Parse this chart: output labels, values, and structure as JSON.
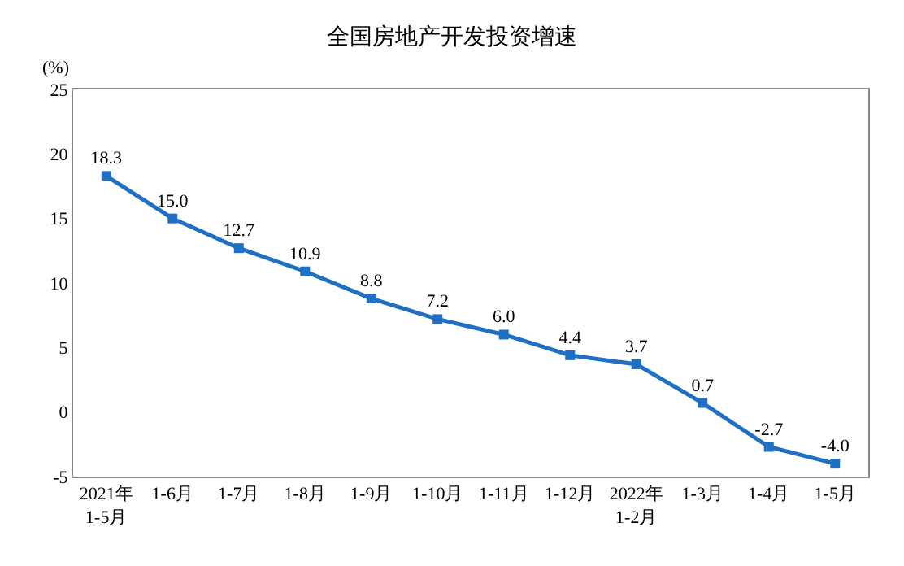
{
  "chart_data": {
    "type": "line",
    "title": "全国房地产开发投资增速",
    "ylabel": "(%)",
    "categories": [
      "2021年\n1-5月",
      "1-6月",
      "1-7月",
      "1-8月",
      "1-9月",
      "1-10月",
      "1-11月",
      "1-12月",
      "2022年\n1-2月",
      "1-3月",
      "1-4月",
      "1-5月"
    ],
    "series": [
      {
        "color": "#1f6fc5",
        "values": [
          18.3,
          15.0,
          12.7,
          10.9,
          8.8,
          7.2,
          6.0,
          4.4,
          3.7,
          0.7,
          -2.7,
          -4.0
        ],
        "value_labels": [
          "18.3",
          "15.0",
          "12.7",
          "10.9",
          "8.8",
          "7.2",
          "6.0",
          "4.4",
          "3.7",
          "0.7",
          "-2.7",
          "-4.0"
        ]
      }
    ],
    "ylim": [
      -5,
      25
    ],
    "yticks": [
      -5,
      0,
      5,
      10,
      15,
      20,
      25
    ],
    "marker": "square",
    "line_style": "solid"
  }
}
